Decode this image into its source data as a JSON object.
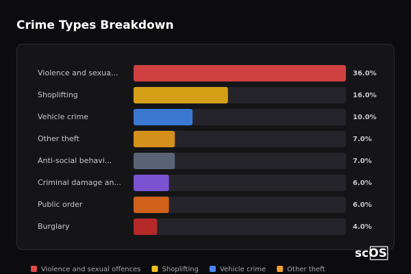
{
  "chart_data": {
    "type": "hbar",
    "title": "Crime Types Breakdown",
    "categories": [
      "Violence and sexua...",
      "Shoplifting",
      "Vehicle crime",
      "Other theft",
      "Anti-social behavi...",
      "Criminal damage an...",
      "Public order",
      "Burglary"
    ],
    "values": [
      36,
      16,
      10,
      7,
      7,
      6,
      6,
      4
    ],
    "value_labels": [
      "36.0%",
      "16.0%",
      "10.0%",
      "7.0%",
      "7.0%",
      "6.0%",
      "6.0%",
      "4.0%"
    ],
    "colors": [
      "#d04040",
      "#d4a017",
      "#3a78d2",
      "#d4901a",
      "#5a6476",
      "#7a52d2",
      "#d0621c",
      "#b52828"
    ],
    "xlim": [
      0,
      36
    ],
    "legend": [
      {
        "name": "Violence and sexual offences",
        "color": "#e04848"
      },
      {
        "name": "Shoplifting",
        "color": "#f0c020"
      },
      {
        "name": "Vehicle crime",
        "color": "#4a88f0"
      },
      {
        "name": "Other theft",
        "color": "#f0a030"
      }
    ],
    "watermark": "scOS"
  }
}
